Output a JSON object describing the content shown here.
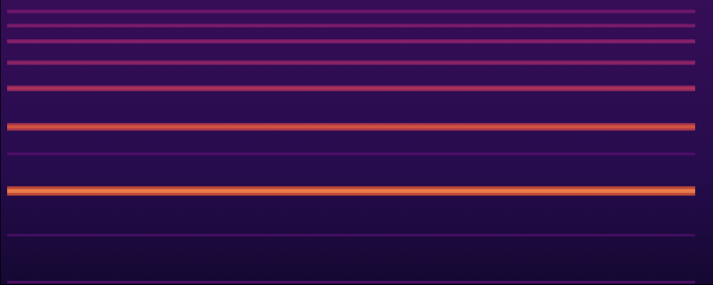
{
  "chart_data": {
    "type": "heatmap",
    "x": [
      1,
      97.5
    ],
    "xlim": [
      0,
      100
    ],
    "ylim": [
      0,
      100
    ],
    "rows": [
      1,
      17.5,
      33,
      46,
      55.5,
      69,
      78,
      85.5,
      91,
      96
    ],
    "intensities": [
      0.35,
      0.32,
      1.0,
      0.36,
      0.86,
      0.7,
      0.58,
      0.56,
      0.52,
      0.48
    ],
    "color_range": [
      0,
      1
    ],
    "tick_labels": false,
    "grid": false
  }
}
